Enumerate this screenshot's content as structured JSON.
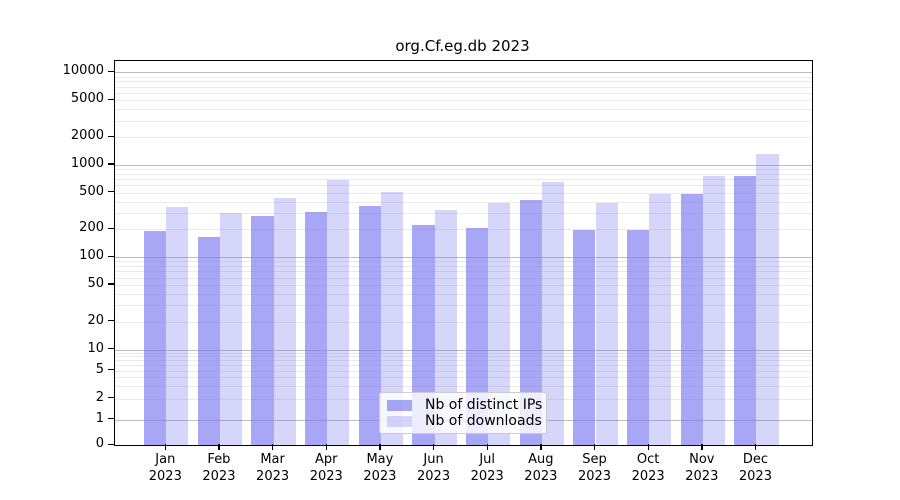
{
  "chart_data": {
    "type": "bar",
    "title": "org.Cf.eg.db 2023",
    "yscale": "symlog",
    "ylim": [
      0,
      13000
    ],
    "xlabel": "",
    "ylabel": "",
    "grid": true,
    "legend_position": "lower center",
    "y_ticks": [
      {
        "value": 0,
        "label": "0",
        "major": false
      },
      {
        "value": 1,
        "label": "1",
        "major": true
      },
      {
        "value": 2,
        "label": "2",
        "major": false
      },
      {
        "value": 5,
        "label": "5",
        "major": false
      },
      {
        "value": 10,
        "label": "10",
        "major": true
      },
      {
        "value": 20,
        "label": "20",
        "major": false
      },
      {
        "value": 50,
        "label": "50",
        "major": false
      },
      {
        "value": 100,
        "label": "100",
        "major": true
      },
      {
        "value": 200,
        "label": "200",
        "major": false
      },
      {
        "value": 500,
        "label": "500",
        "major": false
      },
      {
        "value": 1000,
        "label": "1000",
        "major": true
      },
      {
        "value": 2000,
        "label": "2000",
        "major": false
      },
      {
        "value": 5000,
        "label": "5000",
        "major": false
      },
      {
        "value": 10000,
        "label": "10000",
        "major": true
      }
    ],
    "categories": [
      {
        "month": "Jan",
        "year": "2023"
      },
      {
        "month": "Feb",
        "year": "2023"
      },
      {
        "month": "Mar",
        "year": "2023"
      },
      {
        "month": "Apr",
        "year": "2023"
      },
      {
        "month": "May",
        "year": "2023"
      },
      {
        "month": "Jun",
        "year": "2023"
      },
      {
        "month": "Jul",
        "year": "2023"
      },
      {
        "month": "Aug",
        "year": "2023"
      },
      {
        "month": "Sep",
        "year": "2023"
      },
      {
        "month": "Oct",
        "year": "2023"
      },
      {
        "month": "Nov",
        "year": "2023"
      },
      {
        "month": "Dec",
        "year": "2023"
      }
    ],
    "series": [
      {
        "name": "Nb of distinct IPs",
        "slug": "distinct-ips",
        "color": "rgba(120,120,240,0.65)",
        "values": [
          190,
          167,
          280,
          312,
          358,
          222,
          205,
          420,
          198,
          196,
          478,
          760
        ]
      },
      {
        "name": "Nb of downloads",
        "slug": "downloads",
        "color": "rgba(120,120,240,0.30)",
        "values": [
          353,
          298,
          435,
          690,
          510,
          324,
          385,
          655,
          383,
          487,
          760,
          1300
        ]
      }
    ],
    "colors": {
      "major_grid": "#bdbdbd",
      "minor_grid": "#eaeaea",
      "spine": "#000000",
      "background": "#ffffff"
    }
  }
}
